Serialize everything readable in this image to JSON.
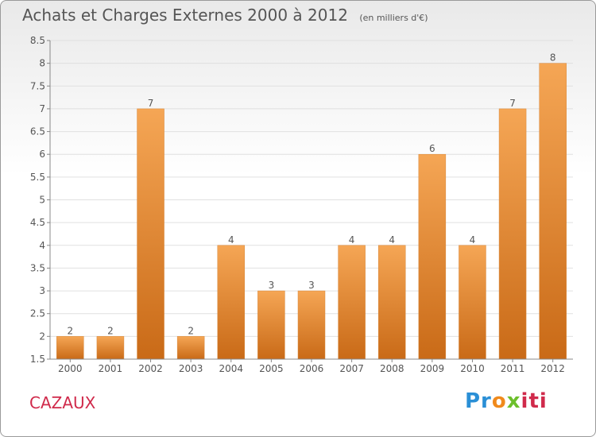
{
  "header": {
    "title": "Achats et Charges Externes 2000 à 2012",
    "unit": "(en milliers d'€)"
  },
  "footer": {
    "place": "CAZAUX",
    "logo_letters": [
      "Pr",
      "o",
      "x",
      "iti"
    ]
  },
  "colors": {
    "bar_top": "#f5a655",
    "bar_bottom": "#c96a17",
    "grid": "#e0e0e0",
    "axis_text": "#555555",
    "place_text": "#d02a4b"
  },
  "chart_data": {
    "type": "bar",
    "title": "Achats et Charges Externes 2000 à 2012",
    "subtitle": "(en milliers d'€)",
    "categories": [
      "2000",
      "2001",
      "2002",
      "2003",
      "2004",
      "2005",
      "2006",
      "2007",
      "2008",
      "2009",
      "2010",
      "2011",
      "2012"
    ],
    "values": [
      2,
      2,
      7,
      2,
      4,
      3,
      3,
      4,
      4,
      6,
      4,
      7,
      8
    ],
    "data_labels": [
      "2",
      "2",
      "7",
      "2",
      "4",
      "3",
      "3",
      "4",
      "4",
      "6",
      "4",
      "7",
      "8"
    ],
    "ylim": [
      1.5,
      8.5
    ],
    "yticks": [
      1.5,
      2,
      2.5,
      3,
      3.5,
      4,
      4.5,
      5,
      5.5,
      6,
      6.5,
      7,
      7.5,
      8,
      8.5
    ],
    "ytick_labels": [
      "1.5",
      "2",
      "2.5",
      "3",
      "3.5",
      "4",
      "4.5",
      "5",
      "5.5",
      "6",
      "6.5",
      "7",
      "7.5",
      "8",
      "8.5"
    ],
    "grid": true,
    "xlabel": "",
    "ylabel": ""
  }
}
